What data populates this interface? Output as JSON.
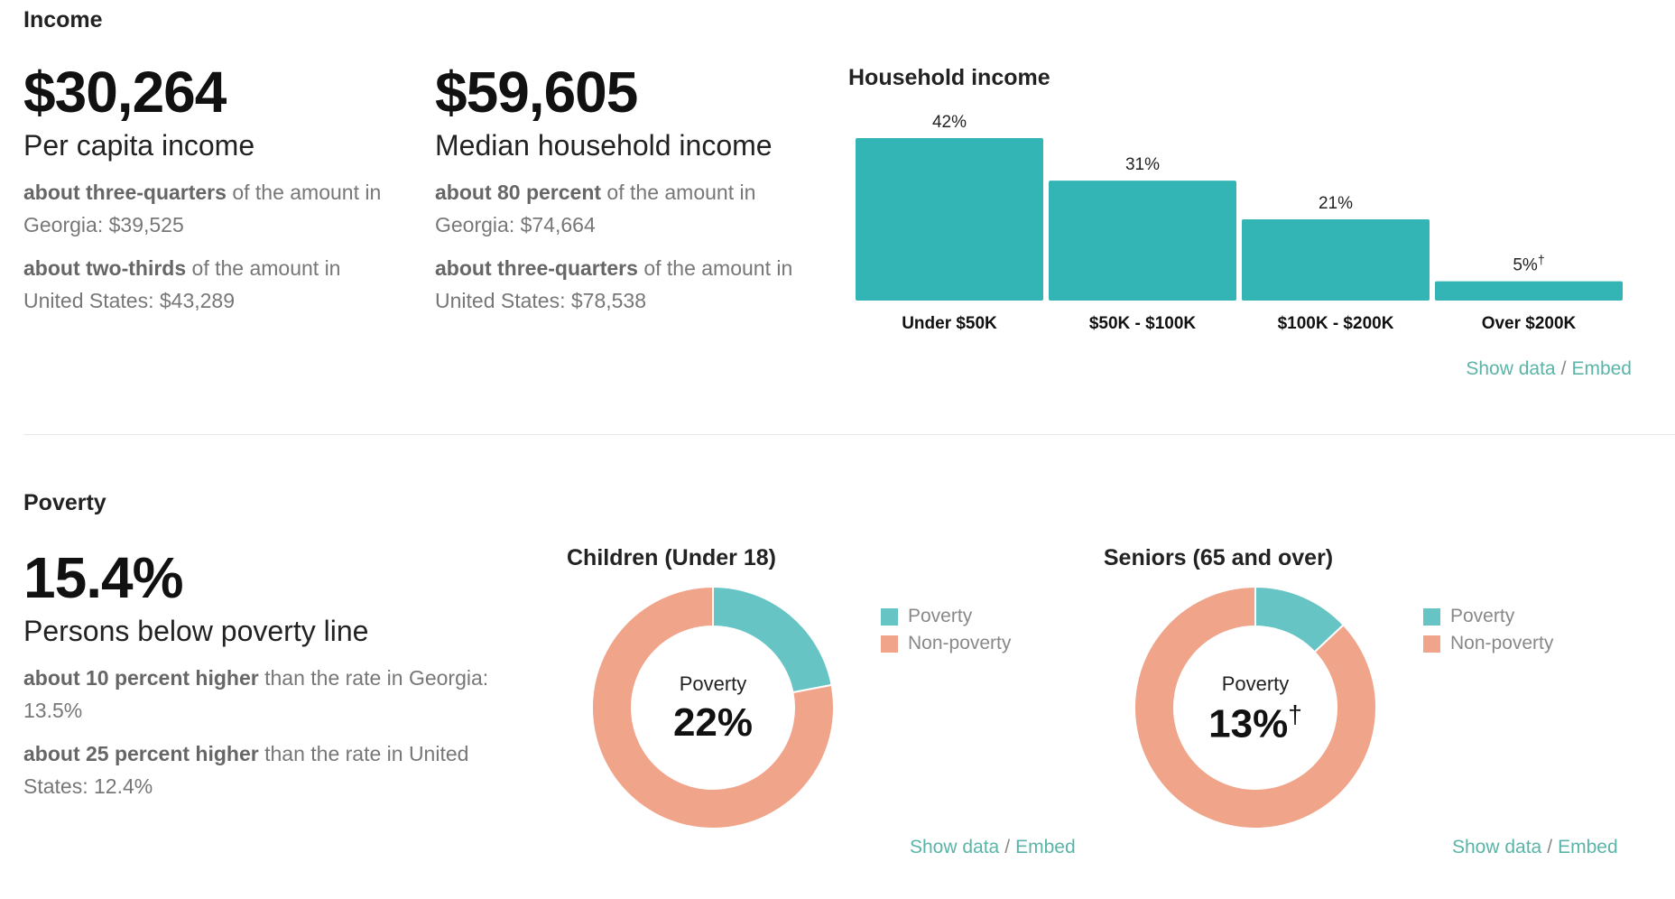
{
  "income": {
    "title": "Income",
    "per_capita": {
      "value": "$30,264",
      "label": "Per capita income",
      "compare_1_bold": "about three-quarters",
      "compare_1_rest": " of the amount in Georgia: $39,525",
      "compare_2_bold": "about two-thirds",
      "compare_2_rest": " of the amount in United States: $43,289"
    },
    "median_household": {
      "value": "$59,605",
      "label": "Median household income",
      "compare_1_bold": "about 80 percent",
      "compare_1_rest": " of the amount in Georgia: $74,664",
      "compare_2_bold": "about three-quarters",
      "compare_2_rest": " of the amount in United States: $78,538"
    },
    "household_chart": {
      "title": "Household income",
      "show_data": "Show data",
      "separator": "/",
      "embed": "Embed"
    }
  },
  "poverty": {
    "title": "Poverty",
    "value": "15.4%",
    "label": "Persons below poverty line",
    "compare_1_bold": "about 10 percent higher",
    "compare_1_rest": " than the rate in Georgia: 13.5%",
    "compare_2_bold": "about 25 percent higher",
    "compare_2_rest": " than the rate in United States: 12.4%",
    "children_chart": {
      "title": "Children (Under 18)",
      "center_label": "Poverty",
      "center_value": "22%",
      "show_data": "Show data",
      "separator": "/",
      "embed": "Embed"
    },
    "seniors_chart": {
      "title": "Seniors (65 and over)",
      "center_label": "Poverty",
      "center_value": "13%",
      "center_mark": "†",
      "show_data": "Show data",
      "separator": "/",
      "embed": "Embed"
    }
  },
  "colors": {
    "teal": "#33b5b5",
    "teal_light": "#67c4c4",
    "salmon": "#f0a48a",
    "link": "#5ab5a8"
  },
  "chart_data": [
    {
      "type": "bar",
      "title": "Household income",
      "categories": [
        "Under $50K",
        "$50K - $100K",
        "$100K - $200K",
        "Over $200K"
      ],
      "values": [
        42,
        31,
        21,
        5
      ],
      "labels": [
        "42%",
        "31%",
        "21%",
        "5%"
      ],
      "label_marks": [
        "",
        "",
        "",
        "†"
      ],
      "ylim": [
        0,
        42
      ],
      "grid": false
    },
    {
      "type": "pie",
      "title": "Children (Under 18)",
      "categories": [
        "Poverty",
        "Non-poverty"
      ],
      "values": [
        22,
        78
      ],
      "legend": "right"
    },
    {
      "type": "pie",
      "title": "Seniors (65 and over)",
      "categories": [
        "Poverty",
        "Non-poverty"
      ],
      "values": [
        13,
        87
      ],
      "legend": "right"
    }
  ]
}
